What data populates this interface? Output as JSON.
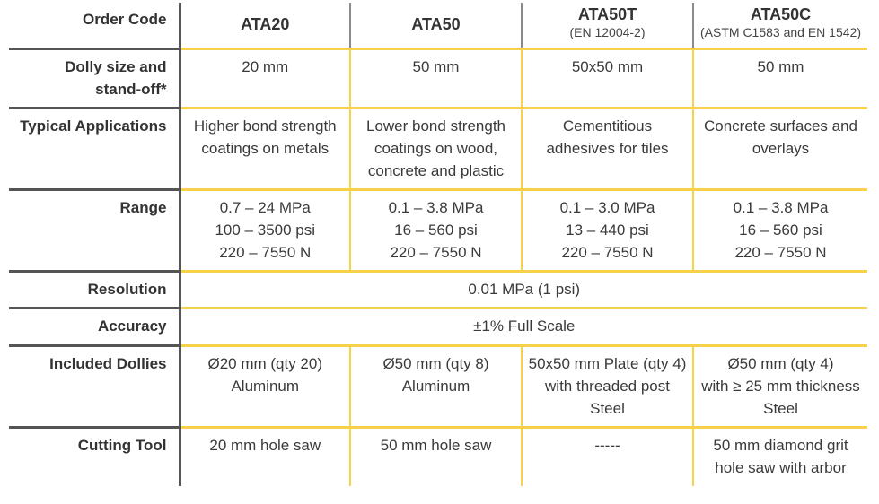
{
  "header": {
    "label": "Order Code",
    "models": [
      {
        "name": "ATA20",
        "sub": ""
      },
      {
        "name": "ATA50",
        "sub": ""
      },
      {
        "name": "ATA50T",
        "sub": "(EN 12004-2)"
      },
      {
        "name": "ATA50C",
        "sub": "(ASTM C1583 and EN 1542)"
      }
    ]
  },
  "rows": [
    {
      "label": [
        "Dolly size and",
        "stand-off*"
      ],
      "cells": [
        [
          "20 mm"
        ],
        [
          "50 mm"
        ],
        [
          "50x50 mm"
        ],
        [
          "50 mm"
        ]
      ]
    },
    {
      "label": [
        "Typical Applications"
      ],
      "cells": [
        [
          "Higher bond strength",
          "coatings on metals"
        ],
        [
          "Lower bond strength",
          "coatings on wood,",
          "concrete and plastic"
        ],
        [
          "Cementitious",
          "adhesives for tiles"
        ],
        [
          "Concrete surfaces and",
          "overlays"
        ]
      ]
    },
    {
      "label": [
        "Range"
      ],
      "cells": [
        [
          "0.7 – 24 MPa",
          "100 – 3500 psi",
          "220 – 7550 N"
        ],
        [
          "0.1 – 3.8 MPa",
          "16 – 560 psi",
          "220 – 7550 N"
        ],
        [
          "0.1 – 3.0 MPa",
          "13 – 440 psi",
          "220 – 7550 N"
        ],
        [
          "0.1 – 3.8 MPa",
          "16 – 560 psi",
          "220 – 7550 N"
        ]
      ]
    },
    {
      "label": [
        "Resolution"
      ],
      "span": [
        "0.01 MPa (1 psi)"
      ]
    },
    {
      "label": [
        "Accuracy"
      ],
      "span": [
        "±1% Full Scale"
      ]
    },
    {
      "label": [
        "Included Dollies"
      ],
      "cells": [
        [
          "Ø20 mm (qty 20)",
          "Aluminum"
        ],
        [
          "Ø50 mm (qty 8)",
          "Aluminum"
        ],
        [
          "50x50 mm Plate (qty 4)",
          "with threaded post",
          "Steel"
        ],
        [
          "Ø50 mm (qty 4)",
          "with ≥ 25 mm thickness",
          "Steel"
        ]
      ]
    },
    {
      "label": [
        "Cutting Tool"
      ],
      "cells": [
        [
          "20 mm hole saw"
        ],
        [
          "50 mm hole saw"
        ],
        [
          "-----"
        ],
        [
          "50 mm diamond grit",
          "hole saw with arbor"
        ]
      ]
    }
  ]
}
